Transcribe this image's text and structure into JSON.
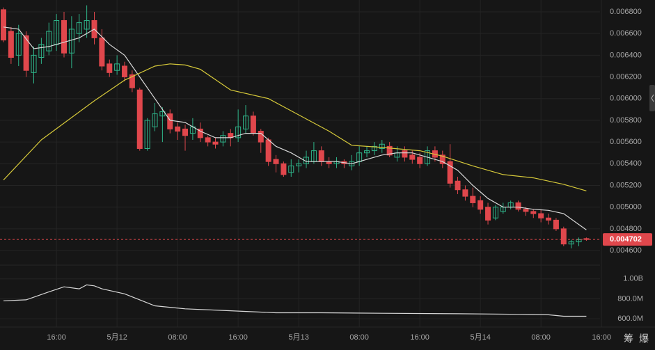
{
  "chart_data": {
    "type": "candlestick",
    "up_color": "#2fb58a",
    "down_color": "#e0474c",
    "open": [
      0.00682,
      0.00662,
      0.0064,
      0.00658,
      0.00624,
      0.00638,
      0.00644,
      0.0065,
      0.00672,
      0.00642,
      0.0066,
      0.00664,
      0.00672,
      0.00656,
      0.00632,
      0.00626,
      0.0063,
      0.00622,
      0.00608,
      0.00554,
      0.00574,
      0.00584,
      0.00586,
      0.00574,
      0.00572,
      0.00568,
      0.00572,
      0.00564,
      0.0056,
      0.0056,
      0.00568,
      0.00564,
      0.00572,
      0.00584,
      0.0057,
      0.00562,
      0.00544,
      0.0054,
      0.00532,
      0.00538,
      0.0054,
      0.00542,
      0.00552,
      0.00542,
      0.0054,
      0.00542,
      0.00538,
      0.00542,
      0.0055,
      0.00552,
      0.00554,
      0.00556,
      0.00546,
      0.00552,
      0.00548,
      0.00546,
      0.0054,
      0.00552,
      0.00548,
      0.00542,
      0.00524,
      0.00516,
      0.0051,
      0.00506,
      0.005,
      0.0049,
      0.00496,
      0.005,
      0.00504,
      0.00498,
      0.00496,
      0.00494,
      0.0049,
      0.00488,
      0.0048,
      0.00466,
      0.00468,
      0.00471
    ],
    "high": [
      0.00684,
      0.00666,
      0.00668,
      0.00662,
      0.00648,
      0.00656,
      0.0067,
      0.00678,
      0.0068,
      0.00676,
      0.00678,
      0.00686,
      0.0068,
      0.00664,
      0.00636,
      0.0064,
      0.00634,
      0.00626,
      0.0061,
      0.00582,
      0.00596,
      0.00592,
      0.0059,
      0.00578,
      0.00576,
      0.00582,
      0.00578,
      0.00566,
      0.00564,
      0.0057,
      0.00572,
      0.0059,
      0.00594,
      0.00588,
      0.00572,
      0.00564,
      0.00548,
      0.00542,
      0.00544,
      0.00544,
      0.00552,
      0.0056,
      0.00556,
      0.00546,
      0.00546,
      0.00544,
      0.00548,
      0.00556,
      0.00556,
      0.0056,
      0.00562,
      0.0056,
      0.00556,
      0.00556,
      0.00552,
      0.0055,
      0.00556,
      0.00556,
      0.00552,
      0.00558,
      0.00528,
      0.0052,
      0.00518,
      0.0051,
      0.00504,
      0.00502,
      0.00504,
      0.00506,
      0.00506,
      0.005,
      0.00498,
      0.00498,
      0.00494,
      0.0049,
      0.00482,
      0.0047,
      0.00472,
      0.00472
    ],
    "low": [
      0.00652,
      0.00632,
      0.0063,
      0.0062,
      0.00614,
      0.00632,
      0.0064,
      0.00644,
      0.00638,
      0.00628,
      0.00652,
      0.00656,
      0.0065,
      0.00626,
      0.0062,
      0.00622,
      0.00616,
      0.00606,
      0.00552,
      0.00552,
      0.0057,
      0.0056,
      0.00568,
      0.00562,
      0.00552,
      0.00562,
      0.0056,
      0.00556,
      0.00554,
      0.00556,
      0.00556,
      0.0056,
      0.00568,
      0.00566,
      0.0055,
      0.00538,
      0.00532,
      0.00528,
      0.00528,
      0.00532,
      0.00536,
      0.0054,
      0.00538,
      0.00536,
      0.00536,
      0.00536,
      0.00534,
      0.00538,
      0.00546,
      0.00548,
      0.0055,
      0.00546,
      0.00542,
      0.00542,
      0.0054,
      0.00536,
      0.00538,
      0.00542,
      0.00536,
      0.00518,
      0.00512,
      0.00506,
      0.005,
      0.00494,
      0.00484,
      0.00488,
      0.00494,
      0.00498,
      0.00496,
      0.00492,
      0.0049,
      0.00486,
      0.00484,
      0.00478,
      0.00464,
      0.00462,
      0.00464,
      0.00469
    ],
    "close": [
      0.00654,
      0.00638,
      0.0066,
      0.00626,
      0.0064,
      0.0065,
      0.00662,
      0.00672,
      0.00642,
      0.00664,
      0.0067,
      0.00672,
      0.00656,
      0.0063,
      0.00624,
      0.00632,
      0.0062,
      0.0061,
      0.00554,
      0.0058,
      0.00586,
      0.00588,
      0.00572,
      0.0057,
      0.00566,
      0.00574,
      0.00564,
      0.0056,
      0.00558,
      0.00566,
      0.00564,
      0.00574,
      0.00584,
      0.00568,
      0.0056,
      0.00542,
      0.0054,
      0.0053,
      0.00538,
      0.0054,
      0.00546,
      0.00552,
      0.00542,
      0.0054,
      0.00542,
      0.0054,
      0.00542,
      0.0055,
      0.00552,
      0.00556,
      0.00558,
      0.00548,
      0.0055,
      0.00546,
      0.00544,
      0.0054,
      0.00552,
      0.00546,
      0.0054,
      0.00522,
      0.00516,
      0.0051,
      0.00504,
      0.00498,
      0.00488,
      0.005,
      0.005,
      0.00504,
      0.00498,
      0.00496,
      0.00494,
      0.0049,
      0.00488,
      0.0048,
      0.00466,
      0.00468,
      0.0047,
      0.004702
    ],
    "ma_lines": [
      {
        "color": "#d8d8d8",
        "x": [
          0,
          2,
          4,
          6,
          8,
          10,
          12,
          14,
          16,
          18,
          20,
          22,
          24,
          26,
          28,
          30,
          32,
          34,
          36,
          38,
          40,
          42,
          44,
          46,
          48,
          50,
          52,
          54,
          56,
          58,
          60,
          62,
          64,
          66,
          68,
          70,
          72,
          74,
          76,
          77
        ],
        "values": [
          0.00666,
          0.00664,
          0.00646,
          0.00648,
          0.00652,
          0.00656,
          0.00664,
          0.0065,
          0.0064,
          0.0062,
          0.006,
          0.0058,
          0.00578,
          0.0057,
          0.00564,
          0.00564,
          0.00568,
          0.00568,
          0.00556,
          0.0055,
          0.00542,
          0.00542,
          0.00542,
          0.0054,
          0.00544,
          0.00548,
          0.0055,
          0.0055,
          0.00546,
          0.00542,
          0.00534,
          0.0052,
          0.00508,
          0.005,
          0.005,
          0.00498,
          0.00497,
          0.00494,
          0.00484,
          0.00479
        ]
      },
      {
        "color": "#d6c93a",
        "x": [
          0,
          5,
          12,
          16,
          20,
          22,
          24,
          26,
          30,
          35,
          39,
          43,
          46,
          50,
          55,
          58,
          62,
          66,
          70,
          74,
          77
        ],
        "values": [
          0.00525,
          0.00562,
          0.00598,
          0.00617,
          0.0063,
          0.00632,
          0.00631,
          0.00627,
          0.00608,
          0.006,
          0.00585,
          0.0057,
          0.00557,
          0.00555,
          0.00552,
          0.00547,
          0.00538,
          0.0053,
          0.00527,
          0.00521,
          0.00515
        ]
      }
    ],
    "xlim": [
      -0.46,
      78.8
    ],
    "ylim": [
      0.004472,
      0.006909
    ],
    "yticks": [
      {
        "value": 0.0068,
        "label": "0.006800"
      },
      {
        "value": 0.0066,
        "label": "0.006600"
      },
      {
        "value": 0.0064,
        "label": "0.006400"
      },
      {
        "value": 0.0062,
        "label": "0.006200"
      },
      {
        "value": 0.006,
        "label": "0.006000"
      },
      {
        "value": 0.0058,
        "label": "0.005800"
      },
      {
        "value": 0.0056,
        "label": "0.005600"
      },
      {
        "value": 0.0054,
        "label": "0.005400"
      },
      {
        "value": 0.0052,
        "label": "0.005200"
      },
      {
        "value": 0.005,
        "label": "0.005000"
      },
      {
        "value": 0.0048,
        "label": "0.004800"
      },
      {
        "value": 0.0046,
        "label": "0.004600"
      }
    ],
    "last_price": {
      "value": 0.004702,
      "label": "0.004702"
    },
    "xticks": [
      {
        "value": 7,
        "label": "16:00"
      },
      {
        "value": 15,
        "label": "5月12"
      },
      {
        "value": 23,
        "label": "08:00"
      },
      {
        "value": 31,
        "label": "16:00"
      },
      {
        "value": 39,
        "label": "5月13"
      },
      {
        "value": 47,
        "label": "08:00"
      },
      {
        "value": 55,
        "label": "16:00"
      },
      {
        "value": 63,
        "label": "5月14"
      },
      {
        "value": 71,
        "label": "08:00"
      },
      {
        "value": 79,
        "label": "16:00"
      }
    ],
    "volume": {
      "color": "#d8d8d8",
      "x": [
        0,
        3,
        6,
        8,
        10,
        11,
        12,
        13,
        16,
        18,
        20,
        24,
        30,
        36,
        42,
        50,
        60,
        68,
        72,
        74,
        77
      ],
      "values": [
        780000000,
        790000000,
        870000000,
        920000000,
        900000000,
        940000000,
        930000000,
        900000000,
        850000000,
        790000000,
        730000000,
        700000000,
        680000000,
        660000000,
        660000000,
        655000000,
        650000000,
        645000000,
        640000000,
        625000000,
        625000000
      ],
      "ylim": [
        517000000,
        1138000000
      ],
      "yticks": [
        {
          "value": 1000000000,
          "label": "1.00B"
        },
        {
          "value": 800000000,
          "label": "800.0M"
        },
        {
          "value": 600000000,
          "label": "600.0M"
        }
      ]
    },
    "corner_labels": [
      "筹",
      "爆"
    ]
  }
}
